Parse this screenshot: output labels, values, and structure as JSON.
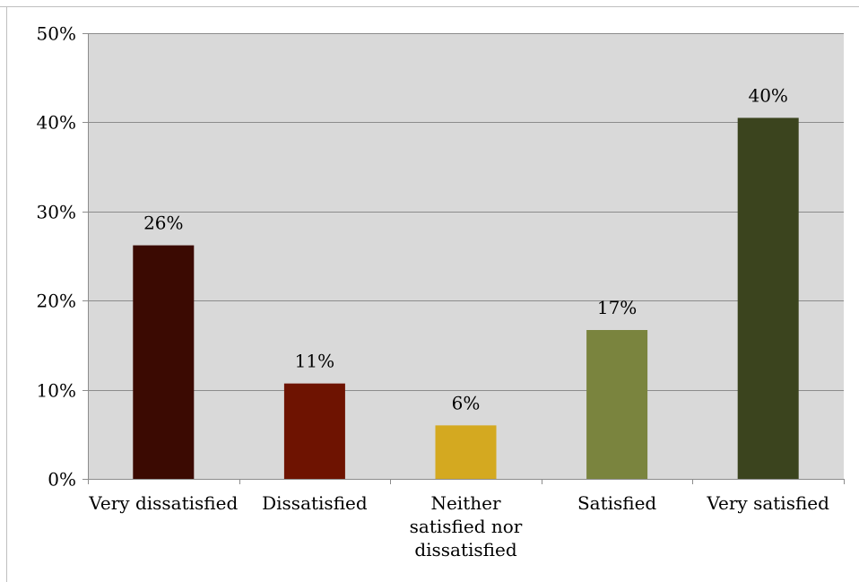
{
  "chart_data": {
    "type": "bar",
    "categories": [
      [
        "Very dissatisfied"
      ],
      [
        "Dissatisfied"
      ],
      [
        "Neither",
        "satisfied nor",
        "dissatisfied"
      ],
      [
        "Satisfied"
      ],
      [
        "Very satisfied"
      ]
    ],
    "values": [
      26.2,
      10.7,
      6.0,
      16.7,
      40.5
    ],
    "data_labels": [
      "26%",
      "11%",
      "6%",
      "17%",
      "40%"
    ],
    "y_ticks": [
      {
        "value": 0,
        "label": "0%"
      },
      {
        "value": 10,
        "label": "10%"
      },
      {
        "value": 20,
        "label": "20%"
      },
      {
        "value": 30,
        "label": "30%"
      },
      {
        "value": 40,
        "label": "40%"
      },
      {
        "value": 50,
        "label": "50%"
      }
    ],
    "ylim": [
      0,
      50
    ],
    "grid": true,
    "legend": "none",
    "colors": [
      "#3b0a02",
      "#6e1301",
      "#d4a920",
      "#7a843e",
      "#3b441e"
    ],
    "plot_background": "#d9d9d9"
  }
}
